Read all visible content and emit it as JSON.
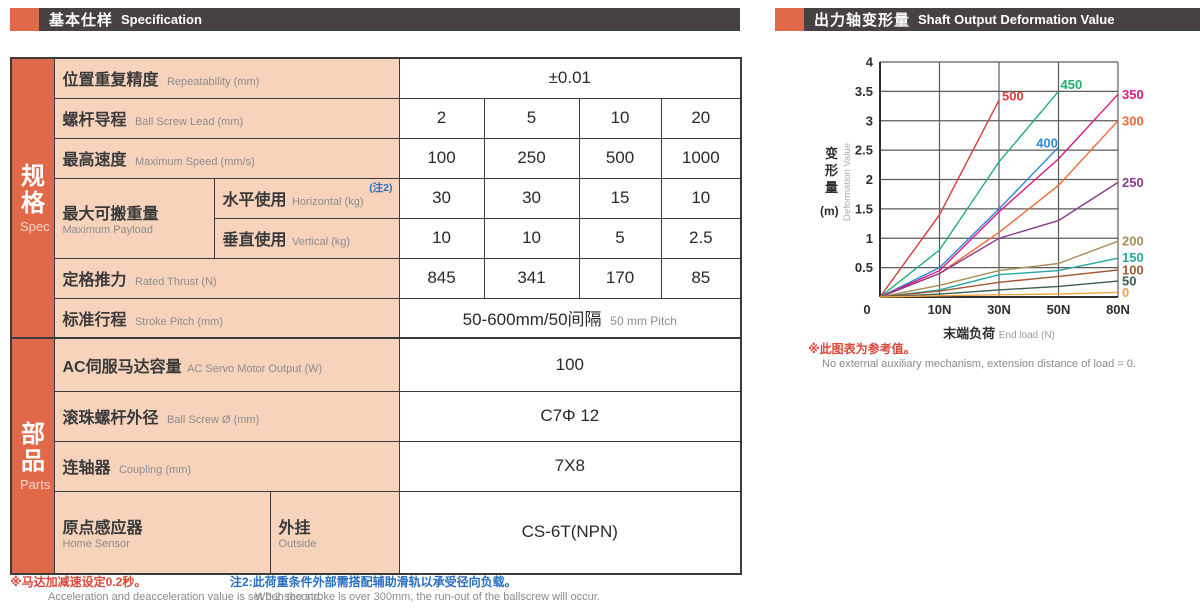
{
  "colors": {
    "accent_orange": "#E0694A",
    "header_dark": "#474241",
    "cell_peach": "#F7D3BC",
    "note_red": "#D9483B",
    "note_blue": "#2A6FC0"
  },
  "left_panel": {
    "header": {
      "title_cn": "基本仕样",
      "title_en": "Specification"
    },
    "sidebar": {
      "spec_cn": "规格",
      "spec_en": "Spec",
      "parts_cn": "部品",
      "parts_en": "Parts"
    },
    "table": {
      "repeatability": {
        "cn": "位置重复精度",
        "en": "Repeatability (mm)",
        "value": "±0.01"
      },
      "lead": {
        "cn": "螺杆导程",
        "en": "Ball Screw Lead (mm)",
        "values": [
          "2",
          "5",
          "10",
          "20"
        ]
      },
      "speed": {
        "cn": "最高速度",
        "en": "Maximum Speed (mm/s)",
        "values": [
          "100",
          "250",
          "500",
          "1000"
        ]
      },
      "payload": {
        "cn": "最大可搬重量",
        "en": "Maximum Payload",
        "horizontal": {
          "cn": "水平使用",
          "en": "Horizontal (kg)",
          "note_ref": "(注2)",
          "values": [
            "30",
            "30",
            "15",
            "10"
          ]
        },
        "vertical": {
          "cn": "垂直使用",
          "en": "Vertical (kg)",
          "values": [
            "10",
            "10",
            "5",
            "2.5"
          ]
        }
      },
      "thrust": {
        "cn": "定格推力",
        "en": "Rated Thrust (N)",
        "values": [
          "845",
          "341",
          "170",
          "85"
        ]
      },
      "stroke": {
        "cn": "标准行程",
        "en": "Stroke Pitch (mm)",
        "value_cn": "50-600mm/50间隔",
        "value_en": "50 mm Pitch"
      },
      "servo": {
        "cn": "AC伺服马达容量",
        "en": "AC Servo Motor Output (W)",
        "value": "100"
      },
      "screw": {
        "cn": "滚珠螺杆外径",
        "en": "Ball Screw Ø (mm)",
        "value": "C7Φ 12"
      },
      "coupling": {
        "cn": "连轴器",
        "en": "Coupling (mm)",
        "value": "7X8"
      },
      "sensor": {
        "cn": "原点感应器",
        "en": "Home Sensor",
        "sub_cn": "外挂",
        "sub_en": "Outside",
        "value": "CS-6T(NPN)"
      }
    },
    "notes": {
      "note1_cn": "※马达加减速设定0.2秒。",
      "note1_en": "Acceleration and deacceleration value is set 0.2 second.",
      "note2_cn": "注2:此荷重条件外部需搭配辅助滑轨以承受径向负载。",
      "note2_en": "When the stroke is over 300mm, the run-out of the ballscrew will occur."
    }
  },
  "right_panel": {
    "header": {
      "title_cn": "出力轴变形量",
      "title_en": "Shaft Output Deformation Value"
    },
    "note_cn": "※此图表为参考值。",
    "note_en": "No external auxiliary mechanism, extension distance of load = 0."
  },
  "chart_data": {
    "type": "line",
    "title": "出力轴变形量 Shaft Output Deformation Value",
    "xlabel_cn": "末端负荷",
    "xlabel_en": "End load (N)",
    "ylabel_cn": "变形量",
    "ylabel_unit": "(m)",
    "ylabel_en": "Deformation Value",
    "x_ticks": [
      0,
      10,
      30,
      50,
      80
    ],
    "x_tick_labels": [
      "0",
      "10N",
      "30N",
      "50N",
      "80N"
    ],
    "ylim": [
      0,
      4
    ],
    "y_tick_step": 0.5,
    "grid": true,
    "legend_position": "inline-labels",
    "series": [
      {
        "name": "500",
        "color": "#D93B3B",
        "points": [
          [
            0,
            0
          ],
          [
            10,
            1.4
          ],
          [
            30,
            3.35
          ]
        ],
        "label_at": [
          31,
          3.42
        ]
      },
      {
        "name": "450",
        "color": "#1FAE72",
        "points": [
          [
            0,
            0
          ],
          [
            10,
            0.8
          ],
          [
            30,
            2.3
          ],
          [
            50,
            3.5
          ]
        ],
        "label_at": [
          51,
          3.62
        ]
      },
      {
        "name": "400",
        "color": "#2E86D4",
        "points": [
          [
            0,
            0
          ],
          [
            10,
            0.5
          ],
          [
            30,
            1.5
          ],
          [
            50,
            2.55
          ]
        ],
        "label_at": [
          42.5,
          2.62
        ]
      },
      {
        "name": "350",
        "color": "#D81B7F",
        "points": [
          [
            0,
            0
          ],
          [
            10,
            0.45
          ],
          [
            30,
            1.45
          ],
          [
            50,
            2.35
          ],
          [
            80,
            3.45
          ]
        ],
        "label_at": [
          82,
          3.45
        ]
      },
      {
        "name": "300",
        "color": "#EF6A3A",
        "points": [
          [
            0,
            0
          ],
          [
            10,
            0.4
          ],
          [
            30,
            1.1
          ],
          [
            50,
            1.9
          ],
          [
            80,
            3.0
          ]
        ],
        "label_at": [
          82,
          3.0
        ]
      },
      {
        "name": "250",
        "color": "#8C3A8C",
        "points": [
          [
            0,
            0
          ],
          [
            10,
            0.4
          ],
          [
            30,
            1.0
          ],
          [
            50,
            1.3
          ],
          [
            80,
            1.95
          ]
        ],
        "label_at": [
          82,
          1.95
        ]
      },
      {
        "name": "200",
        "color": "#AB8D55",
        "points": [
          [
            0,
            0
          ],
          [
            10,
            0.2
          ],
          [
            30,
            0.45
          ],
          [
            50,
            0.57
          ],
          [
            80,
            0.95
          ]
        ],
        "label_at": [
          82,
          0.95
        ]
      },
      {
        "name": "150",
        "color": "#25A8A0",
        "points": [
          [
            0,
            0
          ],
          [
            10,
            0.12
          ],
          [
            30,
            0.38
          ],
          [
            50,
            0.45
          ],
          [
            80,
            0.66
          ]
        ],
        "label_at": [
          82,
          0.67
        ]
      },
      {
        "name": "100",
        "color": "#9E5A36",
        "points": [
          [
            0,
            0
          ],
          [
            10,
            0.1
          ],
          [
            30,
            0.25
          ],
          [
            50,
            0.35
          ],
          [
            80,
            0.46
          ]
        ],
        "label_at": [
          82,
          0.46
        ]
      },
      {
        "name": "50",
        "color": "#3E5B52",
        "points": [
          [
            0,
            0
          ],
          [
            10,
            0.05
          ],
          [
            30,
            0.12
          ],
          [
            50,
            0.18
          ],
          [
            80,
            0.27
          ]
        ],
        "label_at": [
          82,
          0.27
        ]
      },
      {
        "name": "0",
        "color": "#EFA43F",
        "points": [
          [
            0,
            0
          ],
          [
            10,
            0.02
          ],
          [
            30,
            0.04
          ],
          [
            50,
            0.05
          ],
          [
            80,
            0.08
          ]
        ],
        "label_at": [
          82,
          0.075
        ]
      }
    ]
  }
}
